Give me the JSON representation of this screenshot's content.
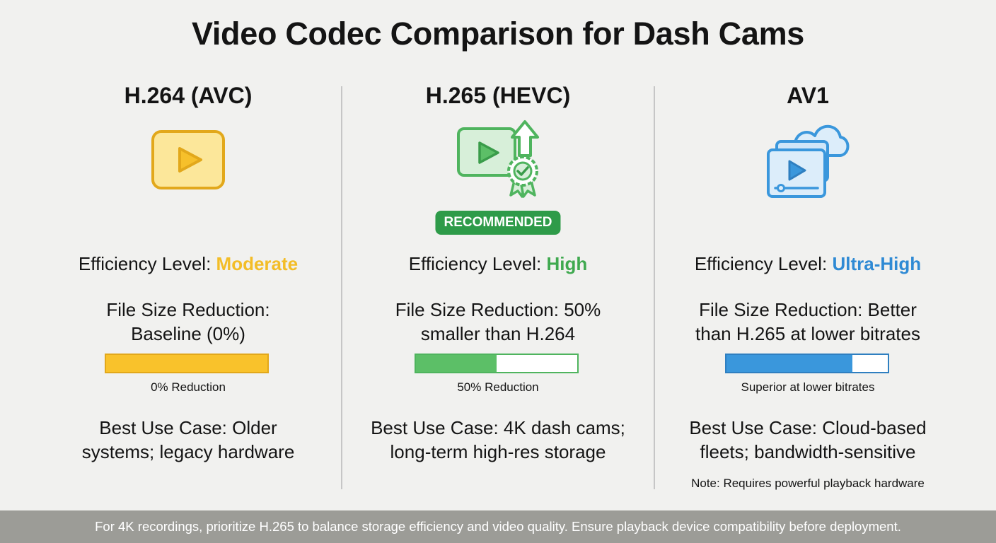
{
  "title": "Video Codec Comparison for Dash Cams",
  "colors": {
    "yellow": "#f6c02b",
    "green": "#5cbf67",
    "blue": "#3a97dc",
    "badge": "#2e9b49",
    "footer_bg": "#9c9c97"
  },
  "codecs": [
    {
      "name": "H.264 (AVC)",
      "icon": "play-button-icon",
      "efficiency_label": "Efficiency Level:",
      "efficiency_value": "Moderate",
      "file_size_line1": "File Size Reduction:",
      "file_size_line2": "Baseline (0%)",
      "bar_fill_fraction": 1.0,
      "bar_label": "0% Reduction",
      "use_case_line1": "Best Use Case: Older",
      "use_case_line2": "systems; legacy hardware"
    },
    {
      "name": "H.265 (HEVC)",
      "icon": "video-award-upgrade-icon",
      "badge": "RECOMMENDED",
      "efficiency_label": "Efficiency Level:",
      "efficiency_value": "High",
      "file_size_line1": "File Size Reduction: 50%",
      "file_size_line2": "smaller than H.264",
      "bar_fill_fraction": 0.5,
      "bar_label": "50% Reduction",
      "use_case_line1": "Best Use Case: 4K dash cams;",
      "use_case_line2": "long-term high-res storage"
    },
    {
      "name": "AV1",
      "icon": "cloud-video-icon",
      "efficiency_label": "Efficiency Level:",
      "efficiency_value": "Ultra-High",
      "file_size_line1": "File Size Reduction: Better",
      "file_size_line2": "than H.265 at lower bitrates",
      "bar_fill_fraction": 0.78,
      "bar_label": "Superior at lower bitrates",
      "use_case_line1": "Best Use Case: Cloud-based",
      "use_case_line2": "fleets; bandwidth-sensitive",
      "note": "Note: Requires powerful playback hardware"
    }
  ],
  "footer": "For 4K recordings, prioritize H.265 to balance storage efficiency and video quality. Ensure playback device compatibility before deployment."
}
